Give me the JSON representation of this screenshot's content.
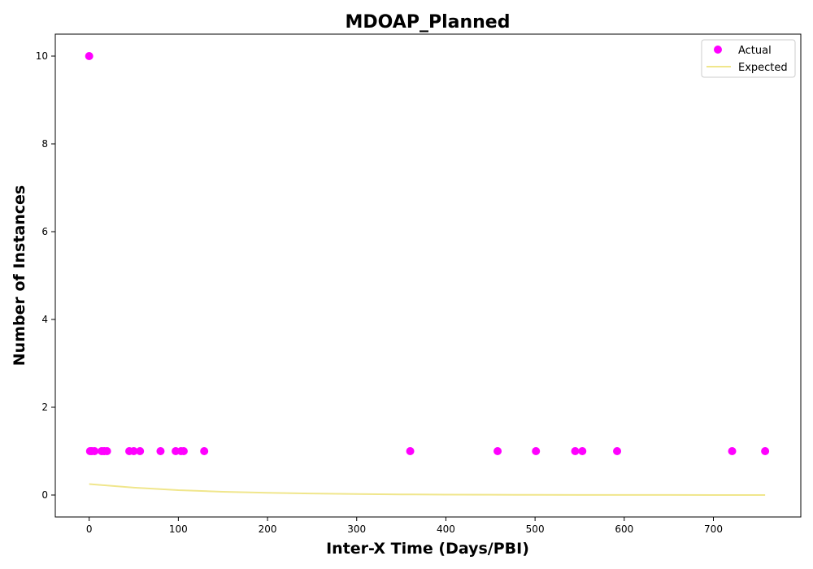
{
  "chart_data": {
    "type": "scatter",
    "title": "MDOAP_Planned",
    "xlabel": "Inter-X Time (Days/PBI)",
    "ylabel": "Number of Instances",
    "xlim": [
      -38,
      798
    ],
    "ylim": [
      -0.5,
      10.5
    ],
    "xticks": [
      0,
      100,
      200,
      300,
      400,
      500,
      600,
      700
    ],
    "yticks": [
      0,
      2,
      4,
      6,
      8,
      10
    ],
    "grid": false,
    "legend_position": "top-right",
    "series": [
      {
        "name": "Actual",
        "kind": "scatter",
        "color": "#ff00ff",
        "x": [
          0,
          1,
          3,
          6,
          14,
          17,
          20,
          45,
          50,
          57,
          80,
          97,
          103,
          106,
          129,
          360,
          458,
          501,
          545,
          553,
          592,
          721,
          758
        ],
        "y": [
          10,
          1,
          1,
          1,
          1,
          1,
          1,
          1,
          1,
          1,
          1,
          1,
          1,
          1,
          1,
          1,
          1,
          1,
          1,
          1,
          1,
          1,
          1
        ]
      },
      {
        "name": "Expected",
        "kind": "line",
        "color": "#f0e68c",
        "x": [
          0,
          50,
          100,
          150,
          200,
          250,
          300,
          350,
          400,
          450,
          500,
          550,
          600,
          650,
          700,
          758
        ],
        "y": [
          0.25,
          0.17,
          0.11,
          0.075,
          0.05,
          0.034,
          0.023,
          0.015,
          0.01,
          0.007,
          0.0045,
          0.003,
          0.002,
          0.0014,
          0.001,
          0.0006
        ]
      }
    ]
  }
}
